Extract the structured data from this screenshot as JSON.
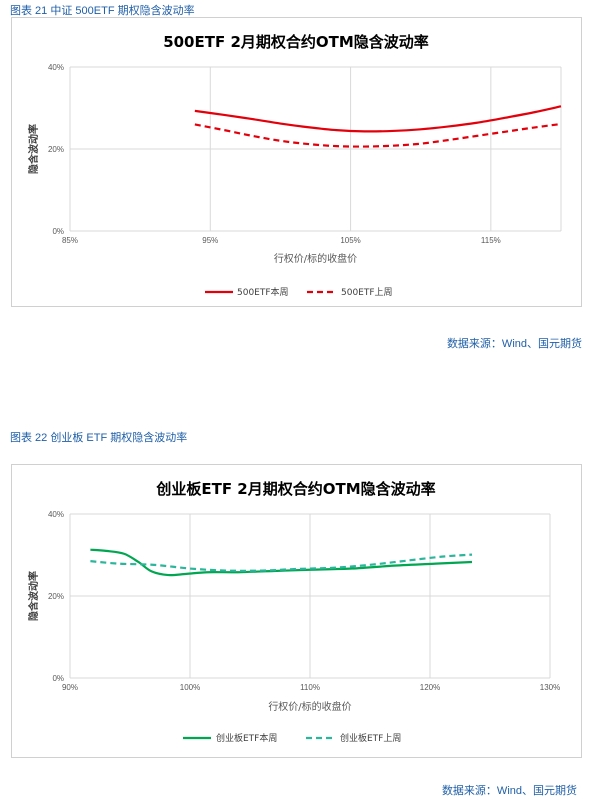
{
  "figures": [
    {
      "caption": "图表 21  中证 500ETF 期权隐含波动率",
      "source": "数据来源：Wind、国元期货"
    },
    {
      "caption": "图表 22  创业板 ETF 期权隐含波动率",
      "source": "数据来源：Wind、国元期货"
    }
  ],
  "chart_data": [
    {
      "type": "line",
      "title": "500ETF 2月期权合约OTM隐含波动率",
      "xlabel": "行权价/标的收盘价",
      "ylabel": "隐含波动率",
      "xlim": [
        85,
        120
      ],
      "ylim": [
        0,
        40
      ],
      "x_ticks": [
        "85%",
        "95%",
        "105%",
        "115%"
      ],
      "y_ticks": [
        "0%",
        "20%",
        "40%"
      ],
      "grid": true,
      "legend_position": "bottom",
      "series": [
        {
          "name": "500ETF本周",
          "color": "#e3000b",
          "dash": "solid",
          "x": [
            93.9,
            96,
            98,
            100,
            102,
            104,
            106,
            108,
            110,
            112,
            114,
            116,
            118,
            120
          ],
          "y": [
            29.3,
            28.3,
            27.3,
            26.2,
            25.3,
            24.6,
            24.3,
            24.4,
            24.8,
            25.5,
            26.4,
            27.6,
            28.9,
            30.4
          ]
        },
        {
          "name": "500ETF上周",
          "color": "#e3000b",
          "dash": "dashed",
          "x": [
            93.9,
            96,
            98,
            100,
            102,
            104,
            106,
            108,
            110,
            112,
            114,
            116,
            118,
            120
          ],
          "y": [
            26.0,
            24.6,
            23.2,
            22.0,
            21.2,
            20.7,
            20.6,
            20.8,
            21.3,
            22.2,
            23.2,
            24.2,
            25.2,
            26.1
          ]
        }
      ]
    },
    {
      "type": "line",
      "title": "创业板ETF 2月期权合约OTM隐含波动率",
      "xlabel": "行权价/标的收盘价",
      "ylabel": "隐含波动率",
      "xlim": [
        90,
        130
      ],
      "ylim": [
        0,
        40
      ],
      "x_ticks": [
        "90%",
        "100%",
        "110%",
        "120%",
        "130%"
      ],
      "y_ticks": [
        "0%",
        "20%",
        "40%"
      ],
      "grid": true,
      "legend_position": "bottom",
      "series": [
        {
          "name": "创业板ETF本周",
          "color": "#00a651",
          "dash": "solid",
          "x": [
            91.7,
            93,
            94.5,
            95.7,
            96.8,
            98.2,
            99.7,
            101.5,
            104,
            107,
            110,
            113.5,
            117,
            120.5,
            123.5
          ],
          "y": [
            31.3,
            31.0,
            30.3,
            28.3,
            26.0,
            25.1,
            25.4,
            25.8,
            25.8,
            26.1,
            26.4,
            26.7,
            27.4,
            27.9,
            28.3
          ]
        },
        {
          "name": "创业板ETF上周",
          "color": "#2bb59b",
          "dash": "dashed",
          "x": [
            91.7,
            94,
            97,
            100,
            103,
            106,
            109,
            112,
            115,
            118,
            121,
            123.5
          ],
          "y": [
            28.5,
            27.9,
            27.6,
            26.7,
            26.2,
            26.2,
            26.6,
            26.9,
            27.6,
            28.6,
            29.6,
            30.1
          ]
        }
      ]
    }
  ]
}
